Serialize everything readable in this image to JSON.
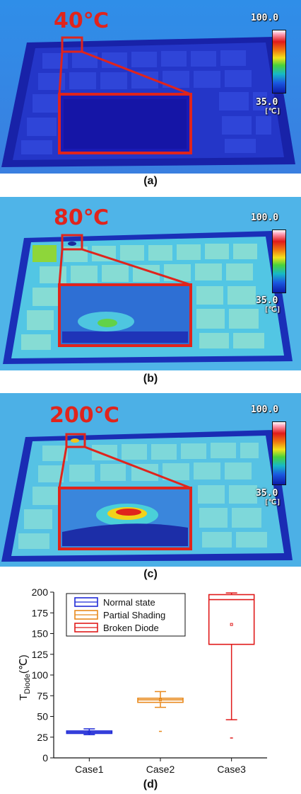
{
  "panels": [
    {
      "temp_label": "40℃",
      "scale_max": "100.0",
      "scale_min": "35.0",
      "scale_unit": "[℃]",
      "caption": "(a)"
    },
    {
      "temp_label": "80℃",
      "scale_max": "100.0",
      "scale_min": "35.0",
      "scale_unit": "[℃]",
      "caption": "(b)"
    },
    {
      "temp_label": "200℃",
      "scale_max": "100.0",
      "scale_min": "35.0",
      "scale_unit": "[℃]",
      "caption": "(c)"
    }
  ],
  "colors": {
    "annotation_red": "#e0241c",
    "normal": "#1f2ad6",
    "partial": "#e8891c",
    "broken": "#e01a1a"
  },
  "chart_caption": "(d)",
  "chart_data": {
    "type": "box",
    "categories": [
      "Case1",
      "Case2",
      "Case3"
    ],
    "ylabel_main": "T",
    "ylabel_sub": "Diode",
    "ylabel_unit": "(℃)",
    "ylim": [
      0,
      200
    ],
    "yticks": [
      0,
      25,
      50,
      75,
      100,
      125,
      150,
      175,
      200
    ],
    "series": [
      {
        "name": "Normal state",
        "color": "#1f2ad6",
        "category": "Case1",
        "whisker_low": 28,
        "q1": 29.5,
        "median": 31,
        "q3": 32.5,
        "whisker_high": 35,
        "mean": 31,
        "outliers": []
      },
      {
        "name": "Partial Shading",
        "color": "#e8891c",
        "category": "Case2",
        "whisker_low": 61,
        "q1": 67,
        "median": 70,
        "q3": 72,
        "whisker_high": 80,
        "mean": 70,
        "outliers": [
          32
        ]
      },
      {
        "name": "Broken Diode",
        "color": "#e01a1a",
        "category": "Case3",
        "whisker_low": 46,
        "q1": 137,
        "median": 191,
        "q3": 197,
        "whisker_high": 199,
        "mean": 161,
        "outliers": [
          24
        ]
      }
    ],
    "legend": "top-left"
  }
}
